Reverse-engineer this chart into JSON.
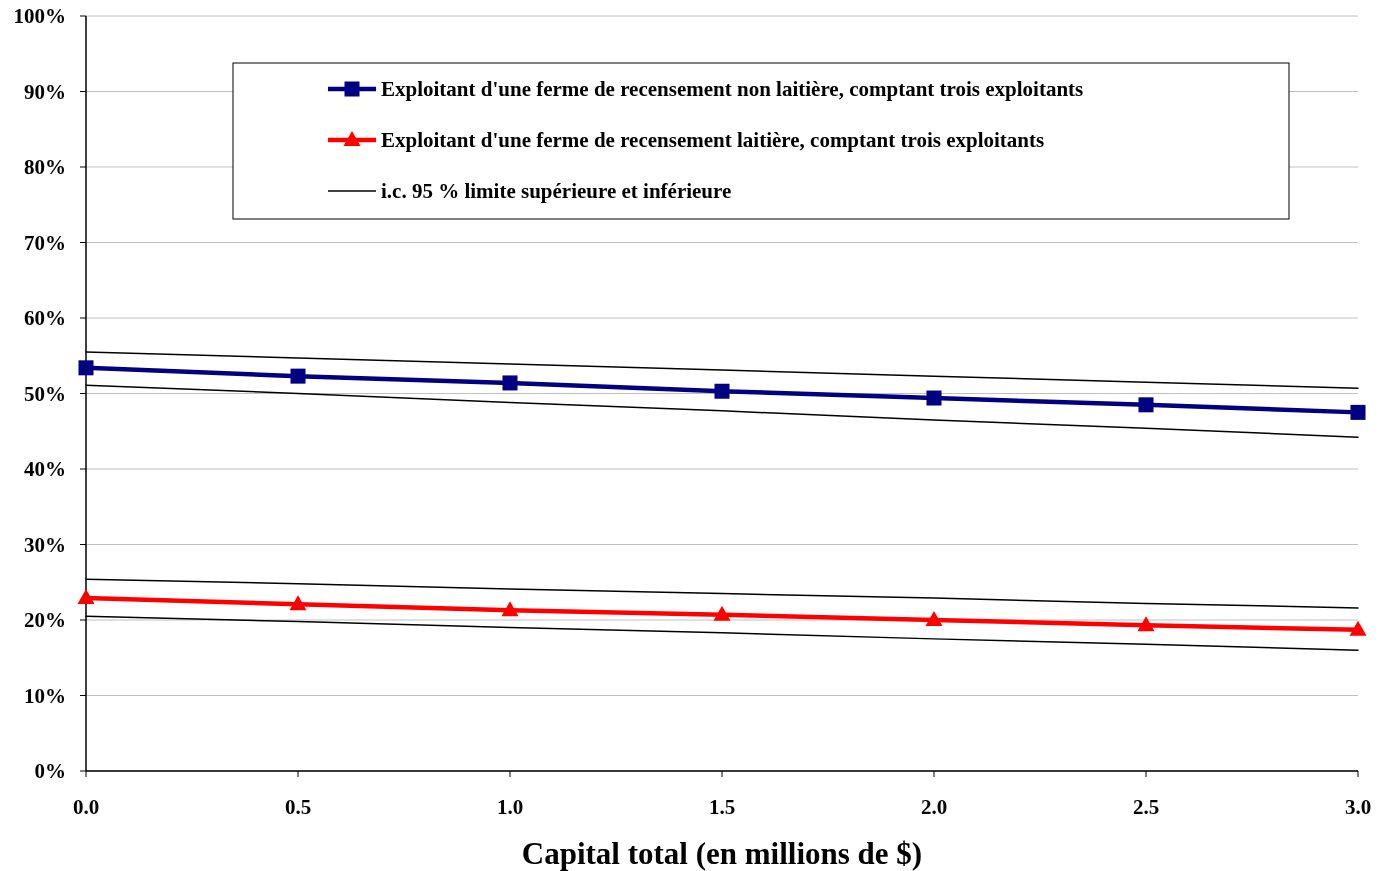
{
  "chart_data": {
    "type": "line",
    "xlabel": "Capital total (en millions de $)",
    "x": [
      0,
      0.5,
      1,
      1.5,
      2,
      2.5,
      3
    ],
    "xlim": [
      0,
      3
    ],
    "xticks": [
      {
        "value": 0,
        "label": "0.0"
      },
      {
        "value": 0.5,
        "label": "0.5"
      },
      {
        "value": 1,
        "label": "1.0"
      },
      {
        "value": 1.5,
        "label": "1.5"
      },
      {
        "value": 2,
        "label": "2.0"
      },
      {
        "value": 2.5,
        "label": "2.5"
      },
      {
        "value": 3,
        "label": "3.0"
      }
    ],
    "ylim": [
      0,
      100
    ],
    "yticks": [
      {
        "value": 0,
        "label": "0%"
      },
      {
        "value": 10,
        "label": "10%"
      },
      {
        "value": 20,
        "label": "20%"
      },
      {
        "value": 30,
        "label": "30%"
      },
      {
        "value": 40,
        "label": "40%"
      },
      {
        "value": 50,
        "label": "50%"
      },
      {
        "value": 60,
        "label": "60%"
      },
      {
        "value": 70,
        "label": "70%"
      },
      {
        "value": 80,
        "label": "80%"
      },
      {
        "value": 90,
        "label": "90%"
      },
      {
        "value": 100,
        "label": "100%"
      }
    ],
    "grid": "y",
    "legend": "top right",
    "line_style": "solid",
    "series": [
      {
        "name": "Exploitant d'une ferme de recensement non laitière, comptant trois exploitants",
        "color": "#000080",
        "marker": "square",
        "values": [
          53.4,
          52.3,
          51.4,
          50.3,
          49.4,
          48.5,
          47.5
        ]
      },
      {
        "name": "Exploitant d'une ferme de recensement laitière, comptant trois exploitants",
        "color": "#ff0000",
        "marker": "triangle",
        "values": [
          22.9,
          22.1,
          21.3,
          20.7,
          20.0,
          19.3,
          18.7
        ]
      },
      {
        "name": "i.c. 95 % limite supérieure et inférieure",
        "color": "#000000",
        "marker": "none",
        "values": [
          55.5,
          54.7,
          53.9,
          53.1,
          52.3,
          51.5,
          50.7
        ]
      },
      {
        "color": "#000000",
        "marker": "none",
        "values": [
          51.1,
          50.0,
          48.8,
          47.7,
          46.5,
          45.4,
          44.2
        ]
      },
      {
        "color": "#000000",
        "marker": "none",
        "values": [
          25.4,
          24.8,
          24.1,
          23.5,
          22.9,
          22.2,
          21.6
        ]
      },
      {
        "color": "#000000",
        "marker": "none",
        "values": [
          20.5,
          19.8,
          19.0,
          18.3,
          17.5,
          16.8,
          16.0
        ]
      }
    ]
  }
}
